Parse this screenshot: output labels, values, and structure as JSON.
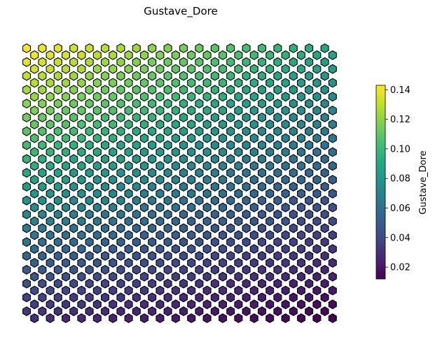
{
  "chart_data": {
    "type": "heatmap",
    "subtype": "hexagonal-som-grid",
    "title": "Gustave_Dore",
    "colorbar": {
      "label": "Gustave_Dore",
      "range": [
        0.012,
        0.143
      ],
      "ticks": [
        "0.02",
        "0.04",
        "0.06",
        "0.08",
        "0.10",
        "0.12",
        "0.14"
      ],
      "tick_values": [
        0.02,
        0.04,
        0.06,
        0.08,
        0.1,
        0.12,
        0.14
      ],
      "colormap": "viridis"
    },
    "grid": {
      "columns": 20,
      "rows": 40,
      "value_model": "approx. top-left 0.143, top-right 0.09, bottom-left 0.03, bottom-right 0.012"
    },
    "axes_visible": false
  }
}
